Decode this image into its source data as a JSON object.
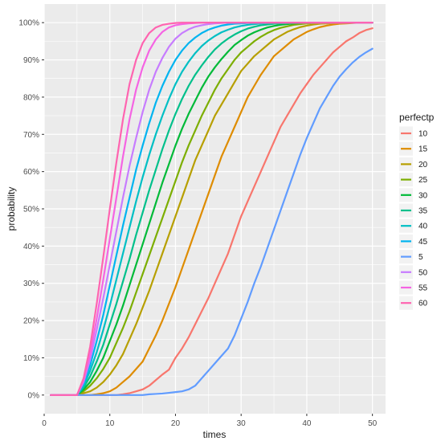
{
  "chart_data": {
    "type": "line",
    "xlabel": "times",
    "ylabel": "probability",
    "xlim": [
      0,
      52
    ],
    "ylim": [
      -0.05,
      1.05
    ],
    "x_ticks": [
      0,
      10,
      20,
      30,
      40,
      50
    ],
    "x_tick_labels": [
      "0",
      "10",
      "20",
      "30",
      "40",
      "50"
    ],
    "y_ticks": [
      0,
      0.1,
      0.2,
      0.3,
      0.4,
      0.5,
      0.6,
      0.7,
      0.8,
      0.9,
      1.0
    ],
    "y_tick_labels": [
      "0%",
      "10%",
      "20%",
      "30%",
      "40%",
      "50%",
      "60%",
      "70%",
      "80%",
      "90%",
      "100%"
    ],
    "grid": true,
    "panel_background": "#ebebeb",
    "grid_color": "#ffffff",
    "legend_title": "perfectp",
    "legend_position": "right",
    "x": [
      1,
      2,
      3,
      4,
      5,
      6,
      7,
      8,
      9,
      10,
      11,
      12,
      13,
      14,
      15,
      16,
      17,
      18,
      19,
      20,
      21,
      22,
      23,
      24,
      25,
      26,
      27,
      28,
      29,
      30,
      31,
      32,
      33,
      34,
      35,
      36,
      37,
      38,
      39,
      40,
      41,
      42,
      43,
      44,
      45,
      46,
      47,
      48,
      49,
      50
    ],
    "series": [
      {
        "name": "10",
        "color": "#F8766D",
        "values": [
          0,
          0,
          0,
          0,
          0,
          0,
          0,
          0,
          0,
          0,
          0,
          0.002,
          0.005,
          0.01,
          0.015,
          0.025,
          0.04,
          0.055,
          0.068,
          0.1,
          0.125,
          0.155,
          0.19,
          0.225,
          0.26,
          0.3,
          0.34,
          0.38,
          0.43,
          0.48,
          0.52,
          0.56,
          0.6,
          0.64,
          0.68,
          0.72,
          0.75,
          0.78,
          0.81,
          0.835,
          0.86,
          0.88,
          0.9,
          0.92,
          0.935,
          0.95,
          0.96,
          0.972,
          0.98,
          0.985
        ]
      },
      {
        "name": "15",
        "color": "#DE8C00",
        "values": [
          0,
          0,
          0,
          0,
          0,
          0,
          0,
          0.002,
          0.005,
          0.01,
          0.02,
          0.035,
          0.05,
          0.07,
          0.09,
          0.125,
          0.16,
          0.2,
          0.245,
          0.29,
          0.34,
          0.39,
          0.44,
          0.49,
          0.54,
          0.59,
          0.64,
          0.68,
          0.72,
          0.76,
          0.8,
          0.83,
          0.86,
          0.885,
          0.91,
          0.925,
          0.94,
          0.955,
          0.965,
          0.975,
          0.982,
          0.988,
          0.992,
          0.995,
          0.997,
          0.998,
          0.999,
          1.0,
          1.0,
          1.0
        ]
      },
      {
        "name": "20",
        "color": "#B79F00",
        "values": [
          0,
          0,
          0,
          0,
          0,
          0.005,
          0.01,
          0.02,
          0.035,
          0.055,
          0.08,
          0.11,
          0.15,
          0.19,
          0.235,
          0.28,
          0.33,
          0.38,
          0.43,
          0.48,
          0.53,
          0.58,
          0.63,
          0.67,
          0.71,
          0.75,
          0.78,
          0.81,
          0.84,
          0.87,
          0.89,
          0.91,
          0.925,
          0.94,
          0.955,
          0.965,
          0.975,
          0.982,
          0.988,
          0.992,
          0.995,
          0.997,
          0.998,
          0.999,
          1.0,
          1.0,
          1.0,
          1.0,
          1.0,
          1.0
        ]
      },
      {
        "name": "25",
        "color": "#7CAE00",
        "values": [
          0,
          0,
          0,
          0,
          0,
          0.01,
          0.025,
          0.045,
          0.07,
          0.1,
          0.14,
          0.18,
          0.225,
          0.275,
          0.325,
          0.375,
          0.425,
          0.475,
          0.525,
          0.575,
          0.625,
          0.67,
          0.71,
          0.75,
          0.785,
          0.82,
          0.85,
          0.875,
          0.9,
          0.92,
          0.935,
          0.95,
          0.962,
          0.972,
          0.98,
          0.986,
          0.99,
          0.994,
          0.996,
          0.998,
          0.999,
          1.0,
          1.0,
          1.0,
          1.0,
          1.0,
          1.0,
          1.0,
          1.0,
          1.0
        ]
      },
      {
        "name": "30",
        "color": "#00BA38",
        "values": [
          0,
          0,
          0,
          0,
          0,
          0.015,
          0.035,
          0.065,
          0.1,
          0.145,
          0.19,
          0.24,
          0.295,
          0.35,
          0.405,
          0.46,
          0.515,
          0.57,
          0.62,
          0.67,
          0.715,
          0.755,
          0.79,
          0.825,
          0.855,
          0.88,
          0.902,
          0.922,
          0.94,
          0.953,
          0.965,
          0.974,
          0.981,
          0.987,
          0.991,
          0.994,
          0.996,
          0.998,
          0.999,
          1.0,
          1.0,
          1.0,
          1.0,
          1.0,
          1.0,
          1.0,
          1.0,
          1.0,
          1.0,
          1.0
        ]
      },
      {
        "name": "35",
        "color": "#00C08B",
        "values": [
          0,
          0,
          0,
          0,
          0,
          0.02,
          0.05,
          0.09,
          0.135,
          0.19,
          0.245,
          0.305,
          0.365,
          0.43,
          0.49,
          0.55,
          0.605,
          0.66,
          0.71,
          0.755,
          0.795,
          0.83,
          0.86,
          0.885,
          0.908,
          0.928,
          0.944,
          0.957,
          0.968,
          0.977,
          0.984,
          0.989,
          0.993,
          0.995,
          0.997,
          0.998,
          0.999,
          1.0,
          1.0,
          1.0,
          1.0,
          1.0,
          1.0,
          1.0,
          1.0,
          1.0,
          1.0,
          1.0,
          1.0,
          1.0
        ]
      },
      {
        "name": "40",
        "color": "#00BFC4",
        "values": [
          0,
          0,
          0,
          0,
          0,
          0.025,
          0.065,
          0.115,
          0.175,
          0.24,
          0.31,
          0.38,
          0.45,
          0.52,
          0.585,
          0.645,
          0.7,
          0.75,
          0.795,
          0.835,
          0.868,
          0.895,
          0.918,
          0.937,
          0.952,
          0.964,
          0.974,
          0.981,
          0.987,
          0.991,
          0.994,
          0.996,
          0.998,
          0.999,
          1.0,
          1.0,
          1.0,
          1.0,
          1.0,
          1.0,
          1.0,
          1.0,
          1.0,
          1.0,
          1.0,
          1.0,
          1.0,
          1.0,
          1.0,
          1.0
        ]
      },
      {
        "name": "45",
        "color": "#00B4F0",
        "values": [
          0,
          0,
          0,
          0,
          0,
          0.03,
          0.08,
          0.145,
          0.215,
          0.295,
          0.375,
          0.455,
          0.53,
          0.605,
          0.67,
          0.73,
          0.785,
          0.83,
          0.868,
          0.9,
          0.925,
          0.945,
          0.96,
          0.972,
          0.981,
          0.987,
          0.992,
          0.995,
          0.997,
          0.998,
          0.999,
          1.0,
          1.0,
          1.0,
          1.0,
          1.0,
          1.0,
          1.0,
          1.0,
          1.0,
          1.0,
          1.0,
          1.0,
          1.0,
          1.0,
          1.0,
          1.0,
          1.0,
          1.0,
          1.0
        ]
      },
      {
        "name": "5",
        "color": "#619CFF",
        "values": [
          0,
          0,
          0,
          0,
          0,
          0,
          0,
          0,
          0,
          0,
          0,
          0,
          0,
          0,
          0,
          0.002,
          0.003,
          0.004,
          0.006,
          0.008,
          0.01,
          0.015,
          0.025,
          0.045,
          0.065,
          0.085,
          0.105,
          0.125,
          0.16,
          0.205,
          0.25,
          0.3,
          0.345,
          0.395,
          0.445,
          0.495,
          0.545,
          0.595,
          0.645,
          0.69,
          0.73,
          0.77,
          0.8,
          0.83,
          0.855,
          0.875,
          0.893,
          0.908,
          0.92,
          0.93
        ]
      },
      {
        "name": "50",
        "color": "#C77CFF",
        "values": [
          0,
          0,
          0,
          0,
          0,
          0.035,
          0.095,
          0.175,
          0.26,
          0.35,
          0.44,
          0.53,
          0.615,
          0.69,
          0.76,
          0.82,
          0.868,
          0.905,
          0.935,
          0.957,
          0.972,
          0.982,
          0.989,
          0.993,
          0.996,
          0.998,
          0.999,
          1.0,
          1.0,
          1.0,
          1.0,
          1.0,
          1.0,
          1.0,
          1.0,
          1.0,
          1.0,
          1.0,
          1.0,
          1.0,
          1.0,
          1.0,
          1.0,
          1.0,
          1.0,
          1.0,
          1.0,
          1.0,
          1.0,
          1.0
        ]
      },
      {
        "name": "55",
        "color": "#F564E3",
        "values": [
          0,
          0,
          0,
          0,
          0,
          0.04,
          0.11,
          0.205,
          0.31,
          0.42,
          0.53,
          0.64,
          0.74,
          0.82,
          0.88,
          0.925,
          0.955,
          0.975,
          0.987,
          0.993,
          0.996,
          0.998,
          0.999,
          1.0,
          1.0,
          1.0,
          1.0,
          1.0,
          1.0,
          1.0,
          1.0,
          1.0,
          1.0,
          1.0,
          1.0,
          1.0,
          1.0,
          1.0,
          1.0,
          1.0,
          1.0,
          1.0,
          1.0,
          1.0,
          1.0,
          1.0,
          1.0,
          1.0,
          1.0,
          1.0
        ]
      },
      {
        "name": "60",
        "color": "#FF64B0",
        "values": [
          0,
          0,
          0,
          0,
          0,
          0.045,
          0.13,
          0.245,
          0.37,
          0.5,
          0.625,
          0.74,
          0.835,
          0.9,
          0.945,
          0.972,
          0.987,
          0.994,
          0.997,
          0.999,
          1.0,
          1.0,
          1.0,
          1.0,
          1.0,
          1.0,
          1.0,
          1.0,
          1.0,
          1.0,
          1.0,
          1.0,
          1.0,
          1.0,
          1.0,
          1.0,
          1.0,
          1.0,
          1.0,
          1.0,
          1.0,
          1.0,
          1.0,
          1.0,
          1.0,
          1.0,
          1.0,
          1.0,
          1.0,
          1.0
        ]
      }
    ]
  }
}
